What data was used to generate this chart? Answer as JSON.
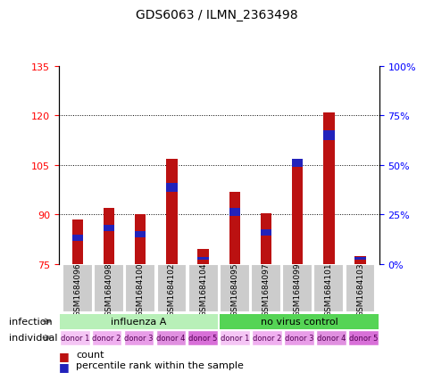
{
  "title": "GDS6063 / ILMN_2363498",
  "samples": [
    "GSM1684096",
    "GSM1684098",
    "GSM1684100",
    "GSM1684102",
    "GSM1684104",
    "GSM1684095",
    "GSM1684097",
    "GSM1684099",
    "GSM1684101",
    "GSM1684103"
  ],
  "red_values": [
    88.5,
    92.0,
    90.0,
    107.0,
    79.5,
    97.0,
    90.5,
    107.0,
    121.0,
    77.5
  ],
  "blue_bottom": [
    82.0,
    85.0,
    83.0,
    97.0,
    76.2,
    89.5,
    83.5,
    104.5,
    112.5,
    76.2
  ],
  "blue_height": [
    2.0,
    2.0,
    2.0,
    2.5,
    1.0,
    2.5,
    2.0,
    2.5,
    3.0,
    1.0
  ],
  "ymin": 75,
  "ymax": 135,
  "yticks_left": [
    75,
    90,
    105,
    120,
    135
  ],
  "yticks_right_pct": [
    0,
    25,
    50,
    75,
    100
  ],
  "infection_groups": [
    {
      "label": "influenza A",
      "start": 0,
      "end": 5,
      "color": "#b8f0b8"
    },
    {
      "label": "no virus control",
      "start": 5,
      "end": 10,
      "color": "#55d455"
    }
  ],
  "individual_labels": [
    "donor 1",
    "donor 2",
    "donor 3",
    "donor 4",
    "donor 5",
    "donor 1",
    "donor 2",
    "donor 3",
    "donor 4",
    "donor 5"
  ],
  "donor_colors": [
    "#f5c6f5",
    "#f0b0f0",
    "#e89de8",
    "#e090e0",
    "#d870d8",
    "#f5c6f5",
    "#f0b0f0",
    "#e89de8",
    "#e090e0",
    "#d870d8"
  ],
  "bar_width": 0.35,
  "red_color": "#bb1111",
  "blue_color": "#2222bb",
  "gray_box_color": "#cccccc",
  "label_infection": "infection",
  "label_individual": "individual"
}
